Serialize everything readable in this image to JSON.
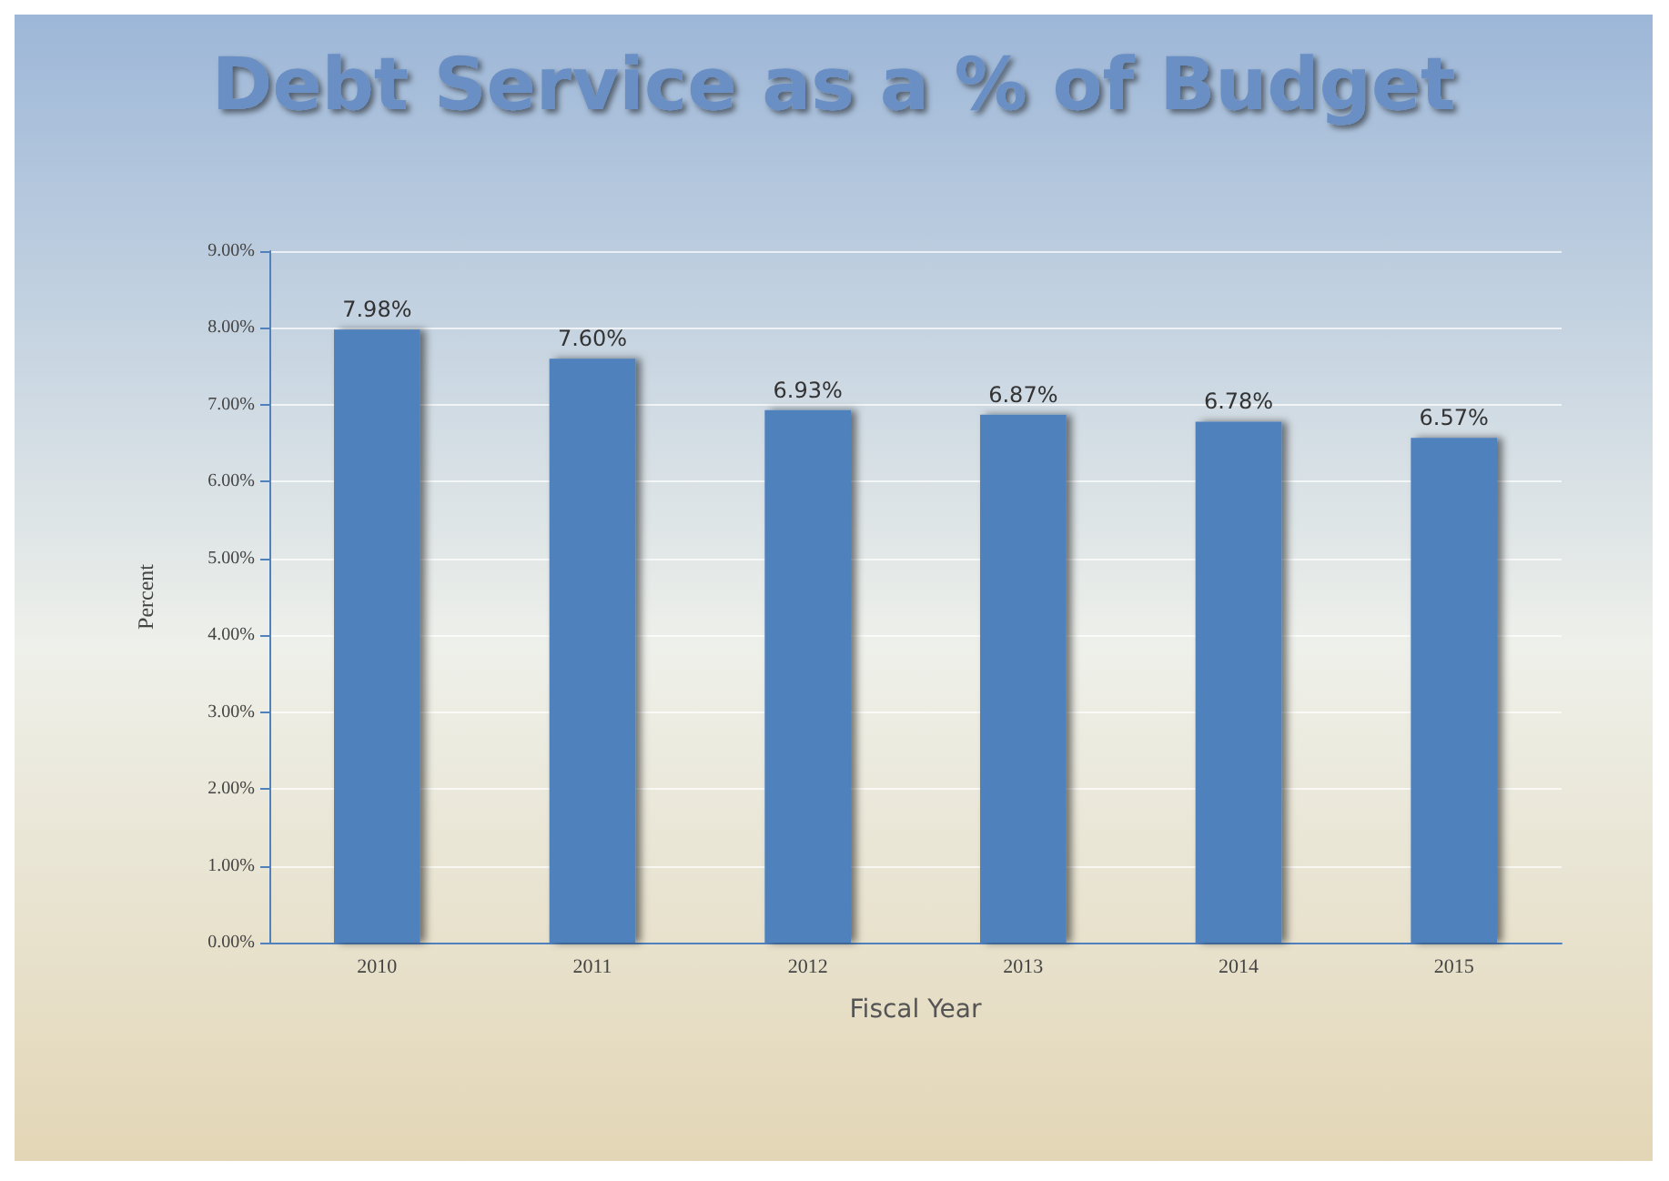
{
  "chart_data": {
    "type": "bar",
    "title": "Debt Service as a % of Budget",
    "xlabel": "Fiscal Year",
    "ylabel": "Percent",
    "categories": [
      "2010",
      "2011",
      "2012",
      "2013",
      "2014",
      "2015"
    ],
    "values": [
      7.98,
      7.6,
      6.93,
      6.87,
      6.78,
      6.57
    ],
    "value_labels": [
      "7.98%",
      "7.60%",
      "6.93%",
      "6.87%",
      "6.78%",
      "6.57%"
    ],
    "color": "#4f81bd",
    "ylim": [
      0,
      9
    ],
    "yticks": [
      {
        "value": 0,
        "label": "0.00%"
      },
      {
        "value": 1,
        "label": "1.00%"
      },
      {
        "value": 2,
        "label": "2.00%"
      },
      {
        "value": 3,
        "label": "3.00%"
      },
      {
        "value": 4,
        "label": "4.00%"
      },
      {
        "value": 5,
        "label": "5.00%"
      },
      {
        "value": 6,
        "label": "6.00%"
      },
      {
        "value": 7,
        "label": "7.00%"
      },
      {
        "value": 8,
        "label": "8.00%"
      },
      {
        "value": 9,
        "label": "9.00%"
      }
    ],
    "grid": "y"
  }
}
